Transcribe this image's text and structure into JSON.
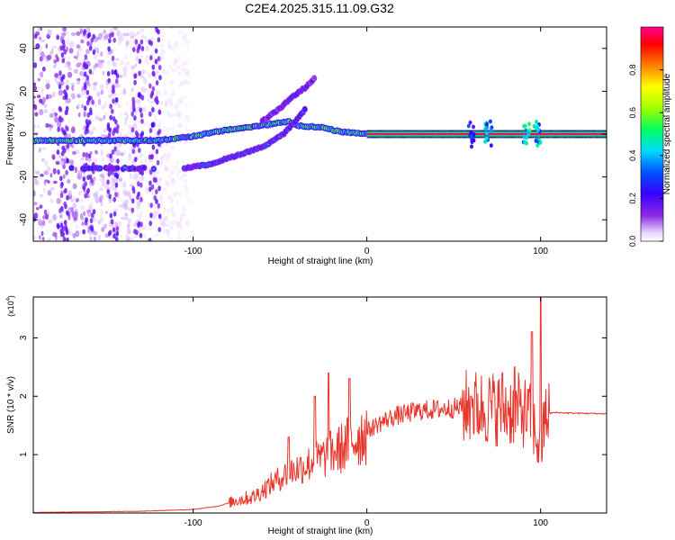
{
  "title": "C2E4.2025.315.11.09.G32",
  "chart_data": [
    {
      "type": "heatmap",
      "name": "spectrogram",
      "xlabel": "Height of straight line (km)",
      "ylabel": "Frequency (Hz)",
      "xlim": [
        -192,
        138
      ],
      "ylim": [
        -50,
        50
      ],
      "xticks": [
        -100,
        0,
        100
      ],
      "xtick_labels": [
        "-100",
        "0",
        "100"
      ],
      "yticks": [
        -40,
        -20,
        0,
        20,
        40
      ],
      "ytick_labels": [
        "-40",
        "-20",
        "0",
        "20",
        "40"
      ],
      "colorbar": {
        "label": "Normalized spectral amplitude",
        "range": [
          0,
          1
        ],
        "ticks": [
          0.0,
          0.2,
          0.4,
          0.6,
          0.8
        ],
        "tick_labels": [
          "0.0",
          "0.2",
          "0.4",
          "0.6",
          "0.8"
        ],
        "colors": [
          "#ffffff",
          "#d9b8ff",
          "#8a2be2",
          "#3b00ff",
          "#0050ff",
          "#00d8ff",
          "#00ff60",
          "#9fff00",
          "#ffff00",
          "#ff8000",
          "#ff0000",
          "#ff0090"
        ]
      },
      "tracks": [
        {
          "name": "main-line",
          "amplitude": 0.85,
          "points": [
            [
              -192,
              -3
            ],
            [
              -150,
              -3
            ],
            [
              -120,
              -3
            ],
            [
              -100,
              -1
            ],
            [
              -80,
              2
            ],
            [
              -60,
              4
            ],
            [
              -45,
              6
            ],
            [
              -40,
              4
            ],
            [
              -25,
              3
            ],
            [
              -15,
              1
            ],
            [
              0,
              0
            ],
            [
              138,
              0
            ]
          ]
        },
        {
          "name": "lower-branch",
          "amplitude": 0.5,
          "points": [
            [
              -105,
              -16
            ],
            [
              -90,
              -14
            ],
            [
              -75,
              -10
            ],
            [
              -60,
              -6
            ],
            [
              -48,
              0
            ],
            [
              -40,
              7
            ],
            [
              -35,
              12
            ]
          ]
        },
        {
          "name": "upper-branch",
          "amplitude": 0.35,
          "points": [
            [
              -60,
              6
            ],
            [
              -50,
              12
            ],
            [
              -42,
              18
            ],
            [
              -35,
              22
            ],
            [
              -30,
              26
            ]
          ]
        },
        {
          "name": "dashed-lower",
          "amplitude": 0.45,
          "points": [
            [
              -170,
              -16
            ],
            [
              -150,
              -16
            ],
            [
              -130,
              -16
            ],
            [
              -115,
              -16
            ]
          ]
        }
      ]
    },
    {
      "type": "line",
      "name": "snr",
      "xlabel": "Height of straight line (km)",
      "ylabel": "SNR (10 * v/v)",
      "yscale_label": "(x10",
      "yscale_exp": "4",
      "xlim": [
        -192,
        138
      ],
      "ylim": [
        0,
        3.7
      ],
      "xticks": [
        -100,
        0,
        100
      ],
      "xtick_labels": [
        "-100",
        "0",
        "100"
      ],
      "yticks": [
        1,
        2,
        3
      ],
      "ytick_labels": [
        "1",
        "2",
        "3"
      ],
      "color": "#e8362c",
      "series": [
        {
          "name": "SNR envelope",
          "x": [
            -192,
            -160,
            -130,
            -100,
            -85,
            -75,
            -65,
            -55,
            -45,
            -35,
            -25,
            -15,
            -5,
            5,
            15,
            30,
            50,
            60,
            70,
            80,
            90,
            95,
            100,
            103,
            108,
            120,
            138
          ],
          "y": [
            0.01,
            0.02,
            0.03,
            0.06,
            0.12,
            0.22,
            0.28,
            0.5,
            0.7,
            0.82,
            0.95,
            1.1,
            1.3,
            1.5,
            1.65,
            1.75,
            1.8,
            1.82,
            1.8,
            1.78,
            1.75,
            1.6,
            1.0,
            1.7,
            1.72,
            1.71,
            1.7
          ]
        },
        {
          "name": "SNR peaks",
          "x": [
            -45,
            -30,
            -22,
            -10,
            60,
            78,
            85,
            95,
            100
          ],
          "y": [
            1.3,
            2.0,
            2.4,
            2.3,
            2.0,
            2.4,
            2.5,
            3.1,
            3.7
          ]
        }
      ]
    }
  ]
}
